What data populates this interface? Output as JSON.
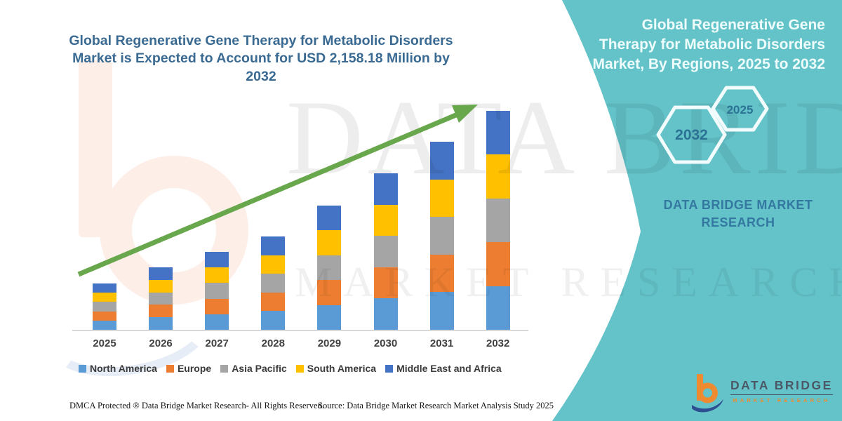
{
  "main": {
    "title_line1": "Global Regenerative Gene Therapy for Metabolic Disorders",
    "title_line2": "Market is Expected to Account for USD 2,158.18 Million by 2032"
  },
  "side_panel": {
    "bg_color": "#63c3c8",
    "title": "Global Regenerative Gene Therapy for Metabolic Disorders Market, By Regions, 2025 to 2032",
    "hexagons": [
      {
        "label": "2032"
      },
      {
        "label": "2025"
      }
    ],
    "brand_caption": "DATA BRIDGE MARKET RESEARCH"
  },
  "watermark": {
    "big_text": "DATA BRIDGE",
    "sub_text": "MARKET RESEARCH"
  },
  "footer": {
    "dmca": "DMCA Protected ® Data Bridge Market Research-  All Rights Reserved.",
    "source": "Source: Data Bridge Market Research  Market Analysis Study 2025"
  },
  "logo": {
    "title": "DATA BRIDGE",
    "subtitle": "MARKET RESEARCH"
  },
  "chart_data": {
    "type": "bar",
    "stacked": true,
    "unit": "USD Million",
    "title": "Global Regenerative Gene Therapy for Metabolic Disorders Market is Expected to Account for USD 2,158.18 Million by 2032",
    "categories": [
      "2025",
      "2026",
      "2027",
      "2028",
      "2029",
      "2030",
      "2031",
      "2032"
    ],
    "series": [
      {
        "name": "North America",
        "color": "#5B9BD5",
        "values": [
          91.3,
          123.1,
          153.6,
          184.0,
          244.9,
          308.5,
          370.8,
          431.64
        ]
      },
      {
        "name": "Europe",
        "color": "#ED7D31",
        "values": [
          91.3,
          123.1,
          153.6,
          184.0,
          244.9,
          308.5,
          370.8,
          431.63
        ]
      },
      {
        "name": "Asia Pacific",
        "color": "#A5A5A5",
        "values": [
          91.3,
          123.1,
          153.6,
          184.0,
          244.9,
          308.5,
          370.8,
          431.63
        ]
      },
      {
        "name": "South America",
        "color": "#FFC000",
        "values": [
          91.3,
          123.1,
          153.6,
          184.0,
          244.9,
          308.5,
          370.8,
          431.64
        ]
      },
      {
        "name": "Middle East and Africa",
        "color": "#4472C4",
        "values": [
          91.3,
          123.1,
          153.6,
          184.0,
          244.9,
          308.5,
          370.8,
          431.64
        ]
      }
    ],
    "totals": [
      456.5,
      615.5,
      768.0,
      920.0,
      1224.5,
      1542.5,
      1854.0,
      2158.18
    ],
    "ylim": [
      0,
      2300
    ],
    "grid": false,
    "legend_position": "bottom",
    "trend_arrow_color": "#68a74c"
  }
}
